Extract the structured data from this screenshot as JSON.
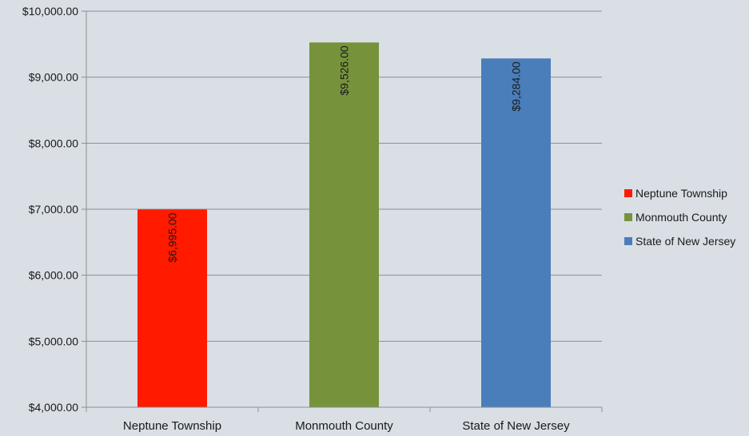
{
  "chart_data": {
    "type": "bar",
    "categories": [
      "Neptune Township",
      "Monmouth County",
      "State of New Jersey"
    ],
    "values": [
      6995,
      9526,
      9284
    ],
    "value_labels": [
      "$6,995.00",
      "$9,526.00",
      "$9,284.00"
    ],
    "colors": [
      "#ff1a00",
      "#76933c",
      "#4a7ebb"
    ],
    "title": "",
    "xlabel": "",
    "ylabel": "",
    "ylim": [
      4000,
      10000
    ],
    "yticks": [
      4000,
      5000,
      6000,
      7000,
      8000,
      9000,
      10000
    ],
    "ytick_labels": [
      "$4,000.00",
      "$5,000.00",
      "$6,000.00",
      "$7,000.00",
      "$8,000.00",
      "$9,000.00",
      "$10,000.00"
    ],
    "grid": true,
    "legend": {
      "placement": "right",
      "entries": [
        "Neptune Township",
        "Monmouth County",
        "State of New Jersey"
      ]
    }
  }
}
